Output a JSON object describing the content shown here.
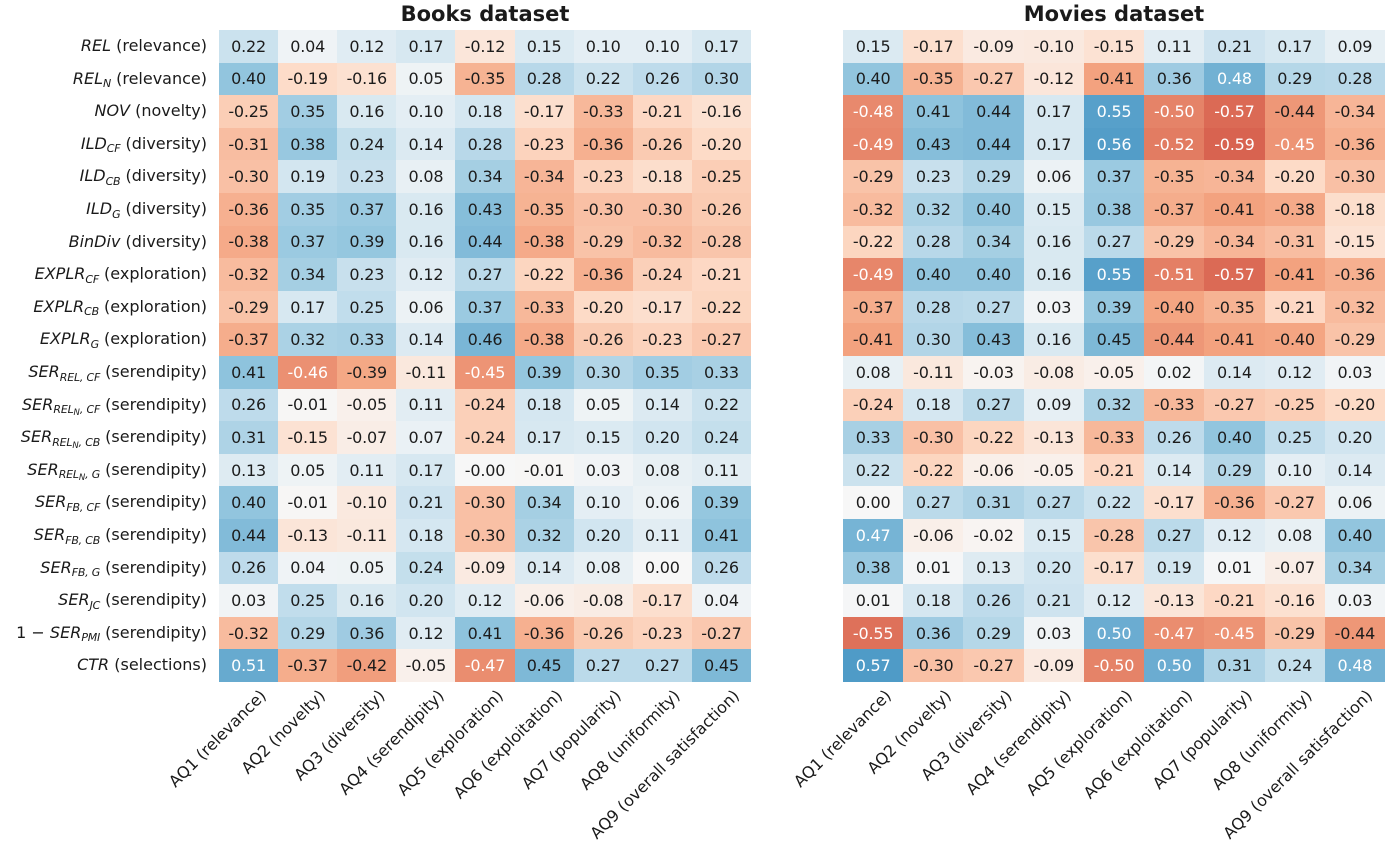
{
  "figure": {
    "background": "#ffffff",
    "label_text_color": "#1a1a1a",
    "annotation_text_dark": "#1c1c1c",
    "annotation_text_light": "#ffffff",
    "colormap": {
      "name": "RdBu",
      "vmin": -1,
      "vmax": 1,
      "stops": [
        "#67001f",
        "#b2182b",
        "#d6604d",
        "#f4a582",
        "#fddbc7",
        "#f7f7f7",
        "#d1e5f0",
        "#92c5de",
        "#4393c3",
        "#2166ac",
        "#053061"
      ]
    }
  },
  "row_label_segments": [
    [
      [
        "m",
        "REL"
      ],
      [
        "d",
        " (relevance)"
      ]
    ],
    [
      [
        "m",
        "REL"
      ],
      [
        "s",
        "N"
      ],
      [
        "d",
        " (relevance)"
      ]
    ],
    [
      [
        "m",
        "NOV"
      ],
      [
        "d",
        " (novelty)"
      ]
    ],
    [
      [
        "m",
        "ILD"
      ],
      [
        "s",
        "CF"
      ],
      [
        "d",
        " (diversity)"
      ]
    ],
    [
      [
        "m",
        "ILD"
      ],
      [
        "s",
        "CB"
      ],
      [
        "d",
        " (diversity)"
      ]
    ],
    [
      [
        "m",
        "ILD"
      ],
      [
        "s",
        "G"
      ],
      [
        "d",
        " (diversity)"
      ]
    ],
    [
      [
        "m",
        "BinDiv"
      ],
      [
        "d",
        " (diversity)"
      ]
    ],
    [
      [
        "m",
        "EXPLR"
      ],
      [
        "s",
        "CF"
      ],
      [
        "d",
        " (exploration)"
      ]
    ],
    [
      [
        "m",
        "EXPLR"
      ],
      [
        "s",
        "CB"
      ],
      [
        "d",
        " (exploration)"
      ]
    ],
    [
      [
        "m",
        "EXPLR"
      ],
      [
        "s",
        "G"
      ],
      [
        "d",
        " (exploration)"
      ]
    ],
    [
      [
        "m",
        "SER"
      ],
      [
        "s",
        "REL, CF"
      ],
      [
        "d",
        " (serendipity)"
      ]
    ],
    [
      [
        "m",
        "SER"
      ],
      [
        "s",
        "REL"
      ],
      [
        "x",
        "N"
      ],
      [
        "s",
        ", CF"
      ],
      [
        "d",
        " (serendipity)"
      ]
    ],
    [
      [
        "m",
        "SER"
      ],
      [
        "s",
        "REL"
      ],
      [
        "x",
        "N"
      ],
      [
        "s",
        ", CB"
      ],
      [
        "d",
        " (serendipity)"
      ]
    ],
    [
      [
        "m",
        "SER"
      ],
      [
        "s",
        "REL"
      ],
      [
        "x",
        "N"
      ],
      [
        "s",
        ", G"
      ],
      [
        "d",
        " (serendipity)"
      ]
    ],
    [
      [
        "m",
        "SER"
      ],
      [
        "s",
        "FB, CF"
      ],
      [
        "d",
        " (serendipity)"
      ]
    ],
    [
      [
        "m",
        "SER"
      ],
      [
        "s",
        "FB, CB"
      ],
      [
        "d",
        " (serendipity)"
      ]
    ],
    [
      [
        "m",
        "SER"
      ],
      [
        "s",
        "FB, G"
      ],
      [
        "d",
        " (serendipity)"
      ]
    ],
    [
      [
        "m",
        "SER"
      ],
      [
        "s",
        "JC"
      ],
      [
        "d",
        " (serendipity)"
      ]
    ],
    [
      [
        "u",
        "1 − "
      ],
      [
        "m",
        "SER"
      ],
      [
        "s",
        "PMI"
      ],
      [
        "d",
        " (serendipity)"
      ]
    ],
    [
      [
        "m",
        "CTR"
      ],
      [
        "d",
        " (selections)"
      ]
    ]
  ],
  "chart_data": [
    {
      "type": "heatmap",
      "title": "Books dataset",
      "colormap": "RdBu",
      "vmin": -1,
      "vmax": 1,
      "columns": [
        "AQ1 (relevance)",
        "AQ2 (novelty)",
        "AQ3 (diversity)",
        "AQ4 (serendipity)",
        "AQ5 (exploration)",
        "AQ6 (exploitation)",
        "AQ7 (popularity)",
        "AQ8 (uniformity)",
        "AQ9 (overall satisfaction)"
      ],
      "rows": [
        "REL (relevance)",
        "REL_N (relevance)",
        "NOV (novelty)",
        "ILD_CF (diversity)",
        "ILD_CB (diversity)",
        "ILD_G (diversity)",
        "BinDiv (diversity)",
        "EXPLR_CF (exploration)",
        "EXPLR_CB (exploration)",
        "EXPLR_G (exploration)",
        "SER_{REL,CF} (serendipity)",
        "SER_{REL_N,CF} (serendipity)",
        "SER_{REL_N,CB} (serendipity)",
        "SER_{REL_N,G} (serendipity)",
        "SER_{FB,CF} (serendipity)",
        "SER_{FB,CB} (serendipity)",
        "SER_{FB,G} (serendipity)",
        "SER_JC (serendipity)",
        "1 − SER_PMI (serendipity)",
        "CTR (selections)"
      ],
      "values": [
        [
          "0.22",
          "0.04",
          "0.12",
          "0.17",
          "-0.12",
          "0.15",
          "0.10",
          "0.10",
          "0.17"
        ],
        [
          "0.40",
          "-0.19",
          "-0.16",
          "0.05",
          "-0.35",
          "0.28",
          "0.22",
          "0.26",
          "0.30"
        ],
        [
          "-0.25",
          "0.35",
          "0.16",
          "0.10",
          "0.18",
          "-0.17",
          "-0.33",
          "-0.21",
          "-0.16"
        ],
        [
          "-0.31",
          "0.38",
          "0.24",
          "0.14",
          "0.28",
          "-0.23",
          "-0.36",
          "-0.26",
          "-0.20"
        ],
        [
          "-0.30",
          "0.19",
          "0.23",
          "0.08",
          "0.34",
          "-0.34",
          "-0.23",
          "-0.18",
          "-0.25"
        ],
        [
          "-0.36",
          "0.35",
          "0.37",
          "0.16",
          "0.43",
          "-0.35",
          "-0.30",
          "-0.30",
          "-0.26"
        ],
        [
          "-0.38",
          "0.37",
          "0.39",
          "0.16",
          "0.44",
          "-0.38",
          "-0.29",
          "-0.32",
          "-0.28"
        ],
        [
          "-0.32",
          "0.34",
          "0.23",
          "0.12",
          "0.27",
          "-0.22",
          "-0.36",
          "-0.24",
          "-0.21"
        ],
        [
          "-0.29",
          "0.17",
          "0.25",
          "0.06",
          "0.37",
          "-0.33",
          "-0.20",
          "-0.17",
          "-0.22"
        ],
        [
          "-0.37",
          "0.32",
          "0.33",
          "0.14",
          "0.46",
          "-0.38",
          "-0.26",
          "-0.23",
          "-0.27"
        ],
        [
          "0.41",
          "-0.46",
          "-0.39",
          "-0.11",
          "-0.45",
          "0.39",
          "0.30",
          "0.35",
          "0.33"
        ],
        [
          "0.26",
          "-0.01",
          "-0.05",
          "0.11",
          "-0.24",
          "0.18",
          "0.05",
          "0.14",
          "0.22"
        ],
        [
          "0.31",
          "-0.15",
          "-0.07",
          "0.07",
          "-0.24",
          "0.17",
          "0.15",
          "0.20",
          "0.24"
        ],
        [
          "0.13",
          "0.05",
          "0.11",
          "0.17",
          "-0.00",
          "-0.01",
          "0.03",
          "0.08",
          "0.11"
        ],
        [
          "0.40",
          "-0.01",
          "-0.10",
          "0.21",
          "-0.30",
          "0.34",
          "0.10",
          "0.06",
          "0.39"
        ],
        [
          "0.44",
          "-0.13",
          "-0.11",
          "0.18",
          "-0.30",
          "0.32",
          "0.20",
          "0.11",
          "0.41"
        ],
        [
          "0.26",
          "0.04",
          "0.05",
          "0.24",
          "-0.09",
          "0.14",
          "0.08",
          "0.00",
          "0.26"
        ],
        [
          "0.03",
          "0.25",
          "0.16",
          "0.20",
          "0.12",
          "-0.06",
          "-0.08",
          "-0.17",
          "0.04"
        ],
        [
          "-0.32",
          "0.29",
          "0.36",
          "0.12",
          "0.41",
          "-0.36",
          "-0.26",
          "-0.23",
          "-0.27"
        ],
        [
          "0.51",
          "-0.37",
          "-0.42",
          "-0.05",
          "-0.47",
          "0.45",
          "0.27",
          "0.27",
          "0.45"
        ]
      ]
    },
    {
      "type": "heatmap",
      "title": "Movies dataset",
      "colormap": "RdBu",
      "vmin": -1,
      "vmax": 1,
      "columns": [
        "AQ1 (relevance)",
        "AQ2 (novelty)",
        "AQ3 (diversity)",
        "AQ4 (serendipity)",
        "AQ5 (exploration)",
        "AQ6 (exploitation)",
        "AQ7 (popularity)",
        "AQ8 (uniformity)",
        "AQ9 (overall satisfaction)"
      ],
      "rows": [
        "REL (relevance)",
        "REL_N (relevance)",
        "NOV (novelty)",
        "ILD_CF (diversity)",
        "ILD_CB (diversity)",
        "ILD_G (diversity)",
        "BinDiv (diversity)",
        "EXPLR_CF (exploration)",
        "EXPLR_CB (exploration)",
        "EXPLR_G (exploration)",
        "SER_{REL,CF} (serendipity)",
        "SER_{REL_N,CF} (serendipity)",
        "SER_{REL_N,CB} (serendipity)",
        "SER_{REL_N,G} (serendipity)",
        "SER_{FB,CF} (serendipity)",
        "SER_{FB,CB} (serendipity)",
        "SER_{FB,G} (serendipity)",
        "SER_JC (serendipity)",
        "1 − SER_PMI (serendipity)",
        "CTR (selections)"
      ],
      "values": [
        [
          "0.15",
          "-0.17",
          "-0.09",
          "-0.10",
          "-0.15",
          "0.11",
          "0.21",
          "0.17",
          "0.09"
        ],
        [
          "0.40",
          "-0.35",
          "-0.27",
          "-0.12",
          "-0.41",
          "0.36",
          "0.48",
          "0.29",
          "0.28"
        ],
        [
          "-0.48",
          "0.41",
          "0.44",
          "0.17",
          "0.55",
          "-0.50",
          "-0.57",
          "-0.44",
          "-0.34"
        ],
        [
          "-0.49",
          "0.43",
          "0.44",
          "0.17",
          "0.56",
          "-0.52",
          "-0.59",
          "-0.45",
          "-0.36"
        ],
        [
          "-0.29",
          "0.23",
          "0.29",
          "0.06",
          "0.37",
          "-0.35",
          "-0.34",
          "-0.20",
          "-0.30"
        ],
        [
          "-0.32",
          "0.32",
          "0.40",
          "0.15",
          "0.38",
          "-0.37",
          "-0.41",
          "-0.38",
          "-0.18"
        ],
        [
          "-0.22",
          "0.28",
          "0.34",
          "0.16",
          "0.27",
          "-0.29",
          "-0.34",
          "-0.31",
          "-0.15"
        ],
        [
          "-0.49",
          "0.40",
          "0.40",
          "0.16",
          "0.55",
          "-0.51",
          "-0.57",
          "-0.41",
          "-0.36"
        ],
        [
          "-0.37",
          "0.28",
          "0.27",
          "0.03",
          "0.39",
          "-0.40",
          "-0.35",
          "-0.21",
          "-0.32"
        ],
        [
          "-0.41",
          "0.30",
          "0.43",
          "0.16",
          "0.45",
          "-0.44",
          "-0.41",
          "-0.40",
          "-0.29"
        ],
        [
          "0.08",
          "-0.11",
          "-0.03",
          "-0.08",
          "-0.05",
          "0.02",
          "0.14",
          "0.12",
          "0.03"
        ],
        [
          "-0.24",
          "0.18",
          "0.27",
          "0.09",
          "0.32",
          "-0.33",
          "-0.27",
          "-0.25",
          "-0.20"
        ],
        [
          "0.33",
          "-0.30",
          "-0.22",
          "-0.13",
          "-0.33",
          "0.26",
          "0.40",
          "0.25",
          "0.20"
        ],
        [
          "0.22",
          "-0.22",
          "-0.06",
          "-0.05",
          "-0.21",
          "0.14",
          "0.29",
          "0.10",
          "0.14"
        ],
        [
          "0.00",
          "0.27",
          "0.31",
          "0.27",
          "0.22",
          "-0.17",
          "-0.36",
          "-0.27",
          "0.06"
        ],
        [
          "0.47",
          "-0.06",
          "-0.02",
          "0.15",
          "-0.28",
          "0.27",
          "0.12",
          "0.08",
          "0.40"
        ],
        [
          "0.38",
          "0.01",
          "0.13",
          "0.20",
          "-0.17",
          "0.19",
          "0.01",
          "-0.07",
          "0.34"
        ],
        [
          "0.01",
          "0.18",
          "0.26",
          "0.21",
          "0.12",
          "-0.13",
          "-0.21",
          "-0.16",
          "0.03"
        ],
        [
          "-0.55",
          "0.36",
          "0.29",
          "0.03",
          "0.50",
          "-0.47",
          "-0.45",
          "-0.29",
          "-0.44"
        ],
        [
          "0.57",
          "-0.30",
          "-0.27",
          "-0.09",
          "-0.50",
          "0.50",
          "0.31",
          "0.24",
          "0.48"
        ]
      ]
    }
  ]
}
